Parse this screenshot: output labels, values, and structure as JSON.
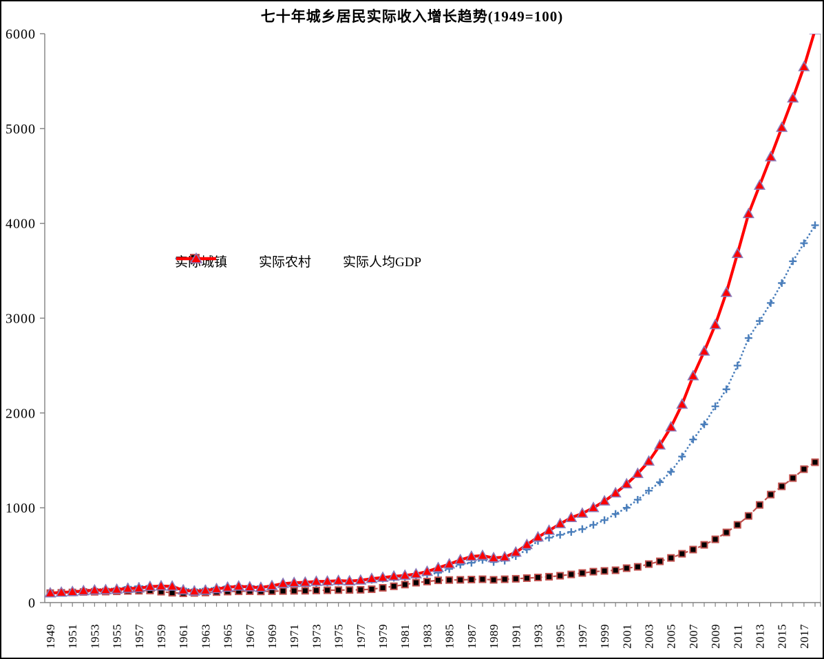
{
  "chart_data": {
    "type": "line",
    "title": "七十年城乡居民实际收入增长趋势(1949=100)",
    "year_start": 1949,
    "year_end": 2018,
    "ylim": [
      0,
      6000
    ],
    "y_tick_labels": [
      "0",
      "1000",
      "2000",
      "3000",
      "4000",
      "5000",
      "6000"
    ],
    "x_tick_labels": [
      "1949",
      "1951",
      "1953",
      "1955",
      "1957",
      "1959",
      "1961",
      "1963",
      "1965",
      "1967",
      "1969",
      "1971",
      "1973",
      "1975",
      "1977",
      "1979",
      "1981",
      "1983",
      "1985",
      "1987",
      "1989",
      "1991",
      "1993",
      "1995",
      "1997",
      "1999",
      "2001",
      "2003",
      "2005",
      "2007",
      "2009",
      "2011",
      "2013",
      "2015",
      "2017"
    ],
    "grid": false,
    "legend_position": "inside-upper-left",
    "colors": {
      "urban": "#4A7EBB",
      "rural_line": "#C0504D",
      "rural_marker": "#000000",
      "gdp": "#FF0000",
      "gdp_marker_stroke": "#8979B8",
      "axis": "#808080",
      "plot_right_border": "#BFBFBF",
      "text": "#000000"
    },
    "series": [
      {
        "name": "实际城镇",
        "line_style": "dotted",
        "marker": "plus",
        "values": [
          100,
          110,
          120,
          132,
          140,
          145,
          150,
          165,
          172,
          176,
          178,
          170,
          148,
          138,
          146,
          158,
          172,
          178,
          175,
          171,
          176,
          183,
          190,
          198,
          205,
          212,
          220,
          225,
          232,
          240,
          252,
          262,
          270,
          278,
          290,
          315,
          355,
          400,
          420,
          450,
          428,
          442,
          490,
          560,
          650,
          685,
          715,
          745,
          775,
          820,
          870,
          935,
          1000,
          1085,
          1180,
          1270,
          1380,
          1540,
          1720,
          1880,
          2070,
          2250,
          2500,
          2790,
          2970,
          3160,
          3370,
          3600,
          3790,
          3980
        ]
      },
      {
        "name": "实际农村",
        "line_style": "dashed",
        "marker": "square",
        "values": [
          100,
          103,
          107,
          112,
          114,
          116,
          119,
          123,
          125,
          127,
          115,
          104,
          98,
          102,
          106,
          111,
          116,
          119,
          120,
          118,
          120,
          122,
          124,
          125,
          128,
          130,
          132,
          133,
          135,
          141,
          156,
          172,
          190,
          210,
          222,
          235,
          238,
          240,
          243,
          246,
          240,
          246,
          251,
          258,
          265,
          273,
          283,
          297,
          312,
          326,
          334,
          341,
          363,
          377,
          406,
          435,
          471,
          515,
          559,
          609,
          667,
          740,
          820,
          914,
          1030,
          1139,
          1226,
          1313,
          1407,
          1480
        ]
      },
      {
        "name": "实际人均GDP",
        "line_style": "solid",
        "marker": "triangle",
        "values": [
          100,
          107,
          114,
          123,
          130,
          133,
          138,
          148,
          152,
          168,
          174,
          171,
          130,
          119,
          128,
          144,
          160,
          172,
          164,
          158,
          177,
          200,
          209,
          213,
          222,
          224,
          231,
          227,
          235,
          252,
          264,
          277,
          286,
          301,
          327,
          366,
          405,
          450,
          486,
          495,
          471,
          480,
          530,
          610,
          690,
          760,
          830,
          895,
          940,
          1000,
          1070,
          1155,
          1250,
          1360,
          1490,
          1660,
          1850,
          2090,
          2390,
          2650,
          2930,
          3270,
          3680,
          4100,
          4400,
          4700,
          5010,
          5320,
          5650,
          6040
        ]
      }
    ]
  }
}
